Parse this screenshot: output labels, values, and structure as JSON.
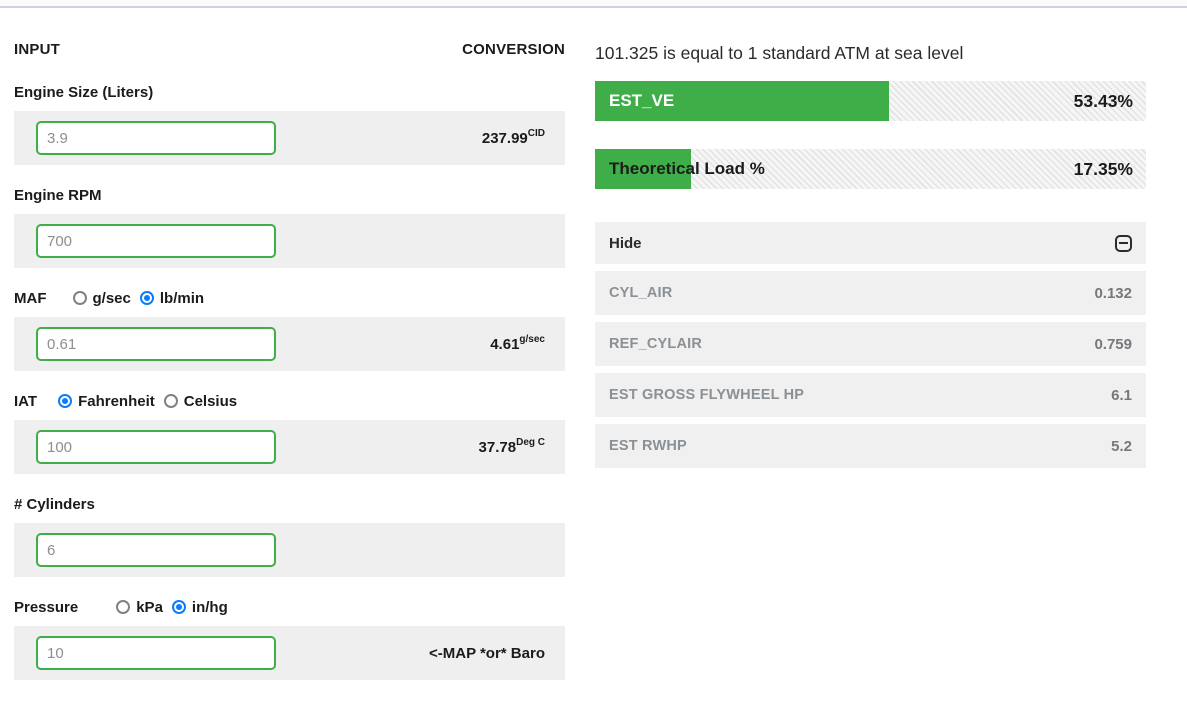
{
  "left_panel": {
    "header_input": "INPUT",
    "header_conversion": "CONVERSION",
    "fields": [
      {
        "label": "Engine Size (Liters)",
        "value": "3.9",
        "conversion": {
          "value": "237.99",
          "unit": "CID"
        }
      },
      {
        "label": "Engine RPM",
        "value": "700"
      },
      {
        "label": "MAF",
        "options": [
          {
            "label": "g/sec",
            "selected": false
          },
          {
            "label": "lb/min",
            "selected": true
          }
        ],
        "value": "0.61",
        "conversion": {
          "value": "4.61",
          "unit": "g/sec"
        }
      },
      {
        "label": "IAT",
        "options": [
          {
            "label": "Fahrenheit",
            "selected": true
          },
          {
            "label": "Celsius",
            "selected": false
          }
        ],
        "value": "100",
        "conversion": {
          "value": "37.78",
          "unit": "Deg C"
        }
      },
      {
        "label": "# Cylinders",
        "value": "6"
      },
      {
        "label": "Pressure",
        "options": [
          {
            "label": "kPa",
            "selected": false
          },
          {
            "label": "in/hg",
            "selected": true
          }
        ],
        "value": "10",
        "conversion_note": "<-MAP *or* Baro"
      }
    ]
  },
  "right_panel": {
    "note": "101.325 is equal to 1 standard ATM at sea level",
    "bars": [
      {
        "label": "EST_VE",
        "display": "53.43%",
        "percent": 53.43
      },
      {
        "label": "Theoretical Load %",
        "display": "17.35%",
        "percent": 17.35
      }
    ],
    "table": {
      "hide_label": "Hide",
      "rows": [
        {
          "label": "CYL_AIR",
          "value": "0.132"
        },
        {
          "label": "REF_CYLAIR",
          "value": "0.759"
        },
        {
          "label": "EST GROSS FLYWHEEL HP",
          "value": "6.1"
        },
        {
          "label": "EST RWHP",
          "value": "5.2"
        }
      ]
    }
  },
  "colors": {
    "accent_green": "#3fae49",
    "radio_blue": "#0a7cff",
    "row_gray": "#efefef"
  }
}
